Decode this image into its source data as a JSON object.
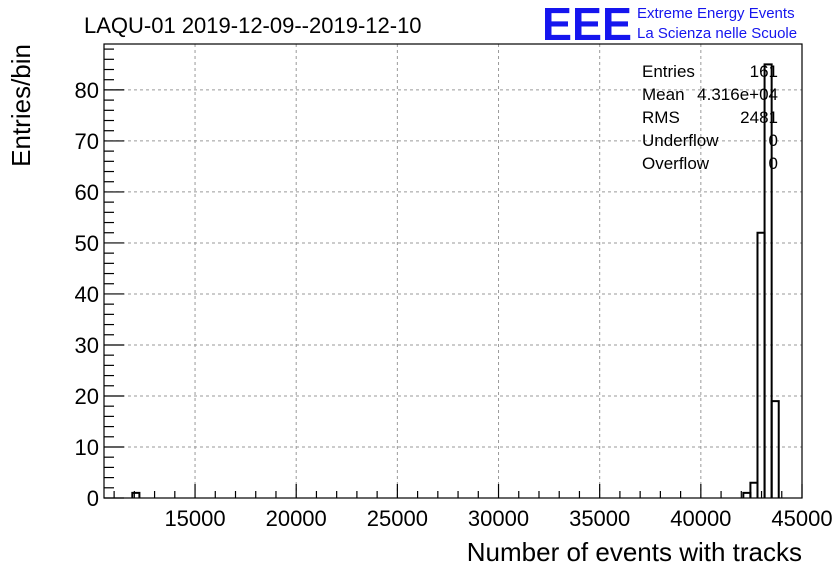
{
  "header": {
    "title": "LAQU-01 2019-12-09--2019-12-10",
    "logo_text": "EEE",
    "logo_line1": "Extreme Energy Events",
    "logo_line2": "La Scienza nelle Scuole"
  },
  "stats": {
    "rows": [
      {
        "label": "Entries",
        "value": "161"
      },
      {
        "label": "Mean",
        "value": "4.316e+04"
      },
      {
        "label": "RMS",
        "value": "2481"
      },
      {
        "label": "Underflow",
        "value": "0"
      },
      {
        "label": "Overflow",
        "value": "0"
      }
    ]
  },
  "colors": {
    "logo": "#1515ee",
    "grid": "#9a9a9a",
    "line": "#000000"
  },
  "chart_data": {
    "type": "bar",
    "xlabel": "Number of events with tracks",
    "ylabel": "Entries/bin",
    "xlim": [
      10500,
      45000
    ],
    "ylim": [
      0,
      89
    ],
    "grid": true,
    "x_ticks": [
      15000,
      20000,
      25000,
      30000,
      35000,
      40000,
      45000
    ],
    "y_ticks": [
      0,
      10,
      20,
      30,
      40,
      50,
      60,
      70,
      80
    ],
    "bin_width": 350,
    "bins": [
      {
        "x0": 11900,
        "x1": 12250,
        "value": 1
      },
      {
        "x0": 42100,
        "x1": 42450,
        "value": 1
      },
      {
        "x0": 42450,
        "x1": 42800,
        "value": 3
      },
      {
        "x0": 42800,
        "x1": 43150,
        "value": 52
      },
      {
        "x0": 43150,
        "x1": 43500,
        "value": 85
      },
      {
        "x0": 43500,
        "x1": 43850,
        "value": 19
      }
    ]
  }
}
